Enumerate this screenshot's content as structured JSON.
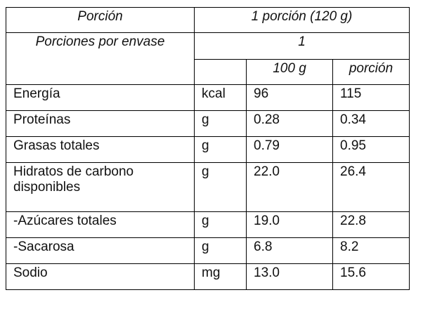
{
  "header": {
    "portion_label": "Porción",
    "portion_value": "1 porción (120 g)",
    "servings_label": "Porciones por envase",
    "servings_value": "1",
    "col_100g": "100 g",
    "col_portion": "porción"
  },
  "rows": [
    [
      "Energía",
      "kcal",
      "96",
      "115"
    ],
    [
      "Proteínas",
      "g",
      "0.28",
      "0.34"
    ],
    [
      "Grasas totales",
      "g",
      "0.79",
      "0.95"
    ],
    [
      "Hidratos de carbono disponibles",
      "g",
      "22.0",
      "26.4"
    ],
    [
      "-Azúcares totales",
      "g",
      "19.0",
      "22.8"
    ],
    [
      "-Sacarosa",
      "g",
      "6.8",
      "8.2"
    ],
    [
      "Sodio",
      "mg",
      "13.0",
      "15.6"
    ]
  ]
}
